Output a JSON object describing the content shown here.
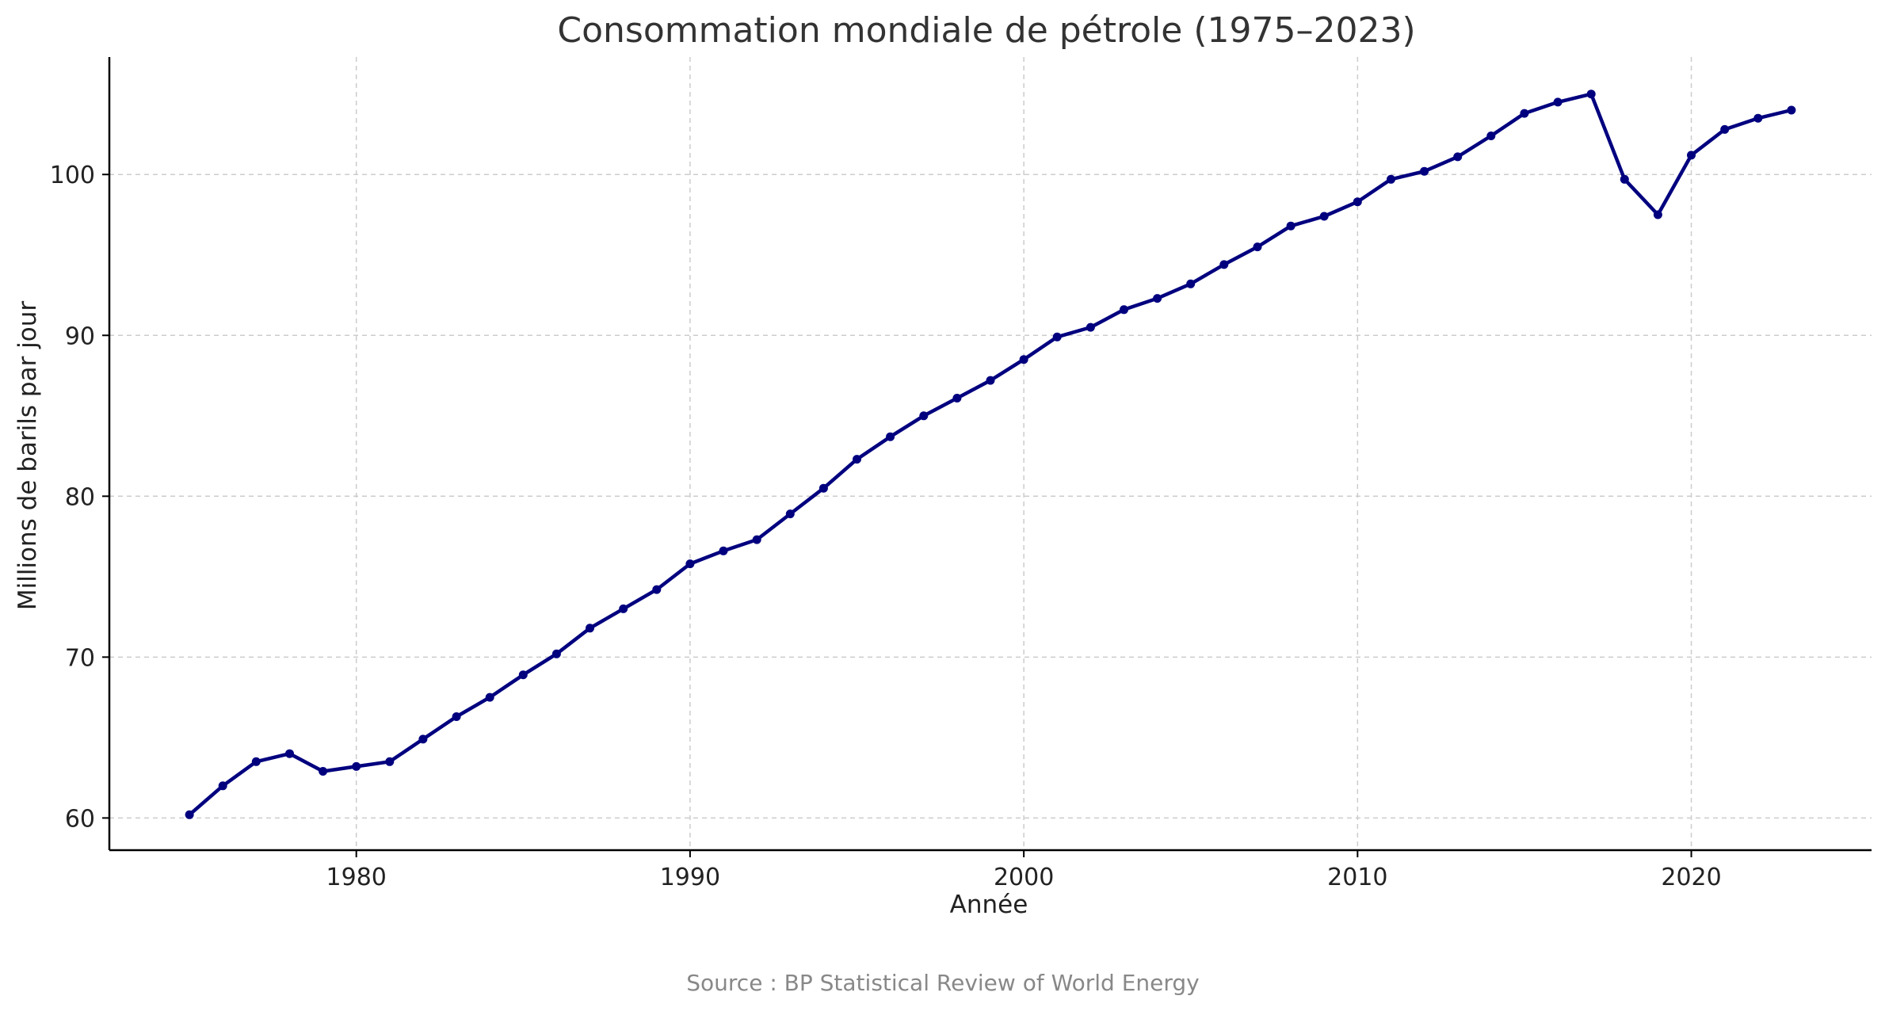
{
  "chart_data": {
    "type": "line",
    "title": "Consommation mondiale de pétrole (1975–2023)",
    "xlabel": "Année",
    "ylabel": "Millions de barils par jour",
    "source": "Source : BP Statistical Review of World Energy",
    "xlim": [
      1972.6,
      2025.4
    ],
    "ylim": [
      58.0,
      107.3
    ],
    "xticks": [
      1980,
      1990,
      2000,
      2010,
      2020
    ],
    "yticks": [
      60,
      70,
      80,
      90,
      100
    ],
    "grid": true,
    "line_color": "#00007f",
    "series": [
      {
        "name": "Consommation",
        "x": [
          1975,
          1976,
          1977,
          1978,
          1979,
          1980,
          1981,
          1982,
          1983,
          1984,
          1985,
          1986,
          1987,
          1988,
          1989,
          1990,
          1991,
          1992,
          1993,
          1994,
          1995,
          1996,
          1997,
          1998,
          1999,
          2000,
          2001,
          2002,
          2003,
          2004,
          2005,
          2006,
          2007,
          2008,
          2009,
          2010,
          2011,
          2012,
          2013,
          2014,
          2015,
          2016,
          2017,
          2018,
          2019,
          2020,
          2021,
          2022,
          2023
        ],
        "values": [
          60.2,
          62.0,
          63.5,
          64.0,
          62.9,
          63.2,
          63.5,
          64.9,
          66.3,
          67.5,
          68.9,
          70.2,
          71.8,
          73.0,
          74.2,
          75.8,
          76.6,
          77.3,
          78.9,
          80.5,
          82.3,
          83.7,
          85.0,
          86.1,
          87.2,
          88.5,
          89.9,
          90.5,
          91.6,
          92.3,
          93.2,
          94.4,
          95.5,
          96.8,
          97.4,
          98.3,
          99.7,
          100.2,
          101.1,
          102.4,
          103.8,
          104.5,
          105.0,
          99.7,
          97.5,
          101.2,
          102.8,
          103.5,
          104.0
        ]
      }
    ]
  }
}
